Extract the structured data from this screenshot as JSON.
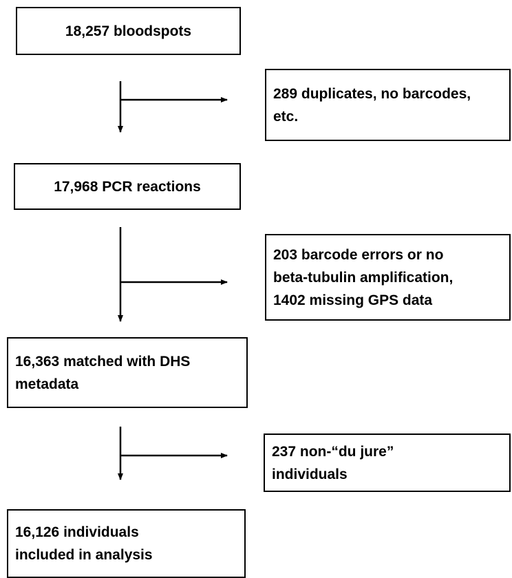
{
  "nodes": [
    {
      "lines": [
        "18,257 bloodspots"
      ]
    },
    {
      "lines": [
        "289 duplicates, no barcodes,",
        "etc."
      ]
    },
    {
      "lines": [
        "17,968 PCR reactions"
      ]
    },
    {
      "lines": [
        "203 barcode errors or no",
        "beta-tubulin amplification,",
        "1402 missing GPS data"
      ]
    },
    {
      "lines": [
        "16,363 matched with DHS",
        "metadata"
      ]
    },
    {
      "lines": [
        "237 non-“du jure”",
        "individuals"
      ]
    },
    {
      "lines": [
        "16,126 individuals",
        "included in analysis"
      ]
    }
  ]
}
